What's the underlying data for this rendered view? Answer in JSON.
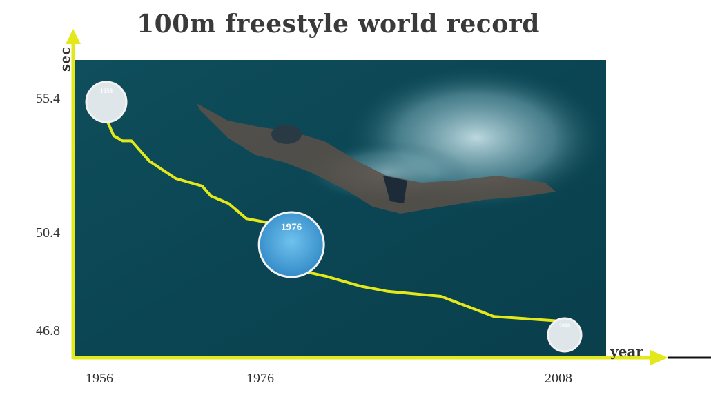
{
  "chart_data": {
    "type": "line",
    "title": "100m freestyle world record",
    "xlabel": "year",
    "ylabel": "sec",
    "x_ticks": [
      "1956",
      "1976",
      "2008"
    ],
    "y_ticks": [
      "55.4",
      "50.4",
      "46.8"
    ],
    "series": [
      {
        "x": [
          1954,
          1956,
          1957,
          1958,
          1959,
          1961,
          1964,
          1967,
          1968,
          1970,
          1972,
          1975,
          1976,
          1976,
          1981,
          1985,
          1988,
          1994,
          2000,
          2008,
          2008,
          2009
        ],
        "y": [
          56.2,
          55.4,
          54.6,
          54.4,
          54.4,
          53.6,
          52.9,
          52.6,
          52.2,
          51.9,
          51.3,
          51.1,
          50.4,
          49.4,
          49.0,
          48.6,
          48.4,
          48.2,
          47.4,
          47.2,
          46.8,
          46.5
        ],
        "color": "#e2e81a"
      }
    ],
    "badges": [
      {
        "label": "1956",
        "year": 1956,
        "value": 55.4
      },
      {
        "label": "1976",
        "year": 1976,
        "value": 50.4
      },
      {
        "label": "2008",
        "year": 2008,
        "value": 46.8
      }
    ],
    "colors": {
      "axis": "#e2e81a",
      "water": "#0e4a57"
    }
  }
}
